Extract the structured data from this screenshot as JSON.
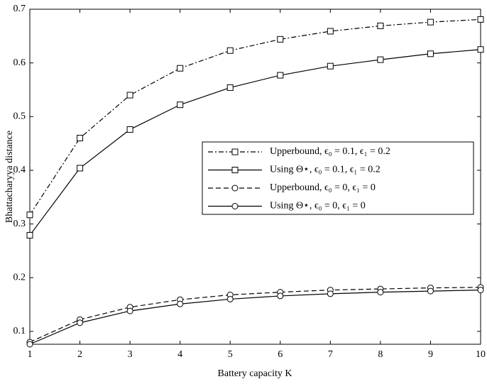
{
  "chart_data": {
    "type": "line",
    "x_label": "Battery capacity K",
    "y_label": "Bhattacharyya distance",
    "x": [
      1,
      2,
      3,
      4,
      5,
      6,
      7,
      8,
      9,
      10
    ],
    "xlim": [
      1,
      10
    ],
    "xticks": [
      1,
      2,
      3,
      4,
      5,
      6,
      7,
      8,
      9,
      10
    ],
    "ylim": [
      0.076,
      0.7
    ],
    "yticks": [
      0.1,
      0.2,
      0.3,
      0.4,
      0.5,
      0.6,
      0.7
    ],
    "legend": "right",
    "series": [
      {
        "name": "Upperbound, ϵ₀ = 0.1, ϵ₁ = 0.2",
        "color": "#000000",
        "dash": "dashdot",
        "marker": "square",
        "values": [
          0.317,
          0.46,
          0.54,
          0.59,
          0.623,
          0.644,
          0.659,
          0.669,
          0.676,
          0.681
        ]
      },
      {
        "name": "Using Θ⋆, ϵ₀ = 0.1, ϵ₁ = 0.2",
        "color": "#000000",
        "dash": "solid",
        "marker": "square",
        "values": [
          0.279,
          0.404,
          0.476,
          0.522,
          0.554,
          0.577,
          0.594,
          0.606,
          0.617,
          0.625
        ]
      },
      {
        "name": "Upperbound, ϵ₀ = 0, ϵ₁ = 0",
        "color": "#000000",
        "dash": "dashed",
        "marker": "circle",
        "values": [
          0.08,
          0.122,
          0.145,
          0.159,
          0.168,
          0.173,
          0.177,
          0.179,
          0.181,
          0.182
        ]
      },
      {
        "name": "Using Θ⋆, ϵ₀ = 0, ϵ₁ = 0",
        "color": "#000000",
        "dash": "solid",
        "marker": "circle",
        "values": [
          0.076,
          0.116,
          0.138,
          0.151,
          0.16,
          0.166,
          0.17,
          0.173,
          0.175,
          0.177
        ]
      }
    ]
  }
}
